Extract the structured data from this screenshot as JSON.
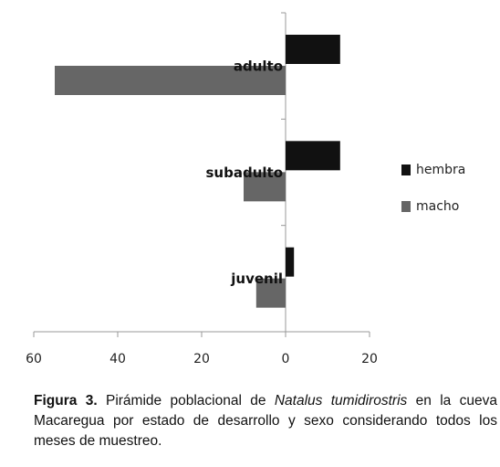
{
  "chart_data": {
    "type": "hbar-pyramid",
    "categories": [
      "adulto",
      "subadulto",
      "juvenil"
    ],
    "series": [
      {
        "name": "hembra",
        "color": "#111111",
        "values": [
          13,
          13,
          2
        ]
      },
      {
        "name": "macho",
        "color": "#666666",
        "values": [
          -55,
          -10,
          -7
        ]
      }
    ],
    "xlim": [
      -60,
      20
    ],
    "xticks": [
      {
        "value": -60,
        "label": "60"
      },
      {
        "value": -40,
        "label": "40"
      },
      {
        "value": -20,
        "label": "20"
      },
      0,
      20
    ],
    "legend": "right"
  },
  "caption": {
    "label": "Figura 3.",
    "text_before": "Pirámide poblacional de",
    "species": "Natalus tumidirostris",
    "text_after": "en la cueva Macaregua por estado de desarrollo y sexo considerando todos los meses de muestreo."
  }
}
